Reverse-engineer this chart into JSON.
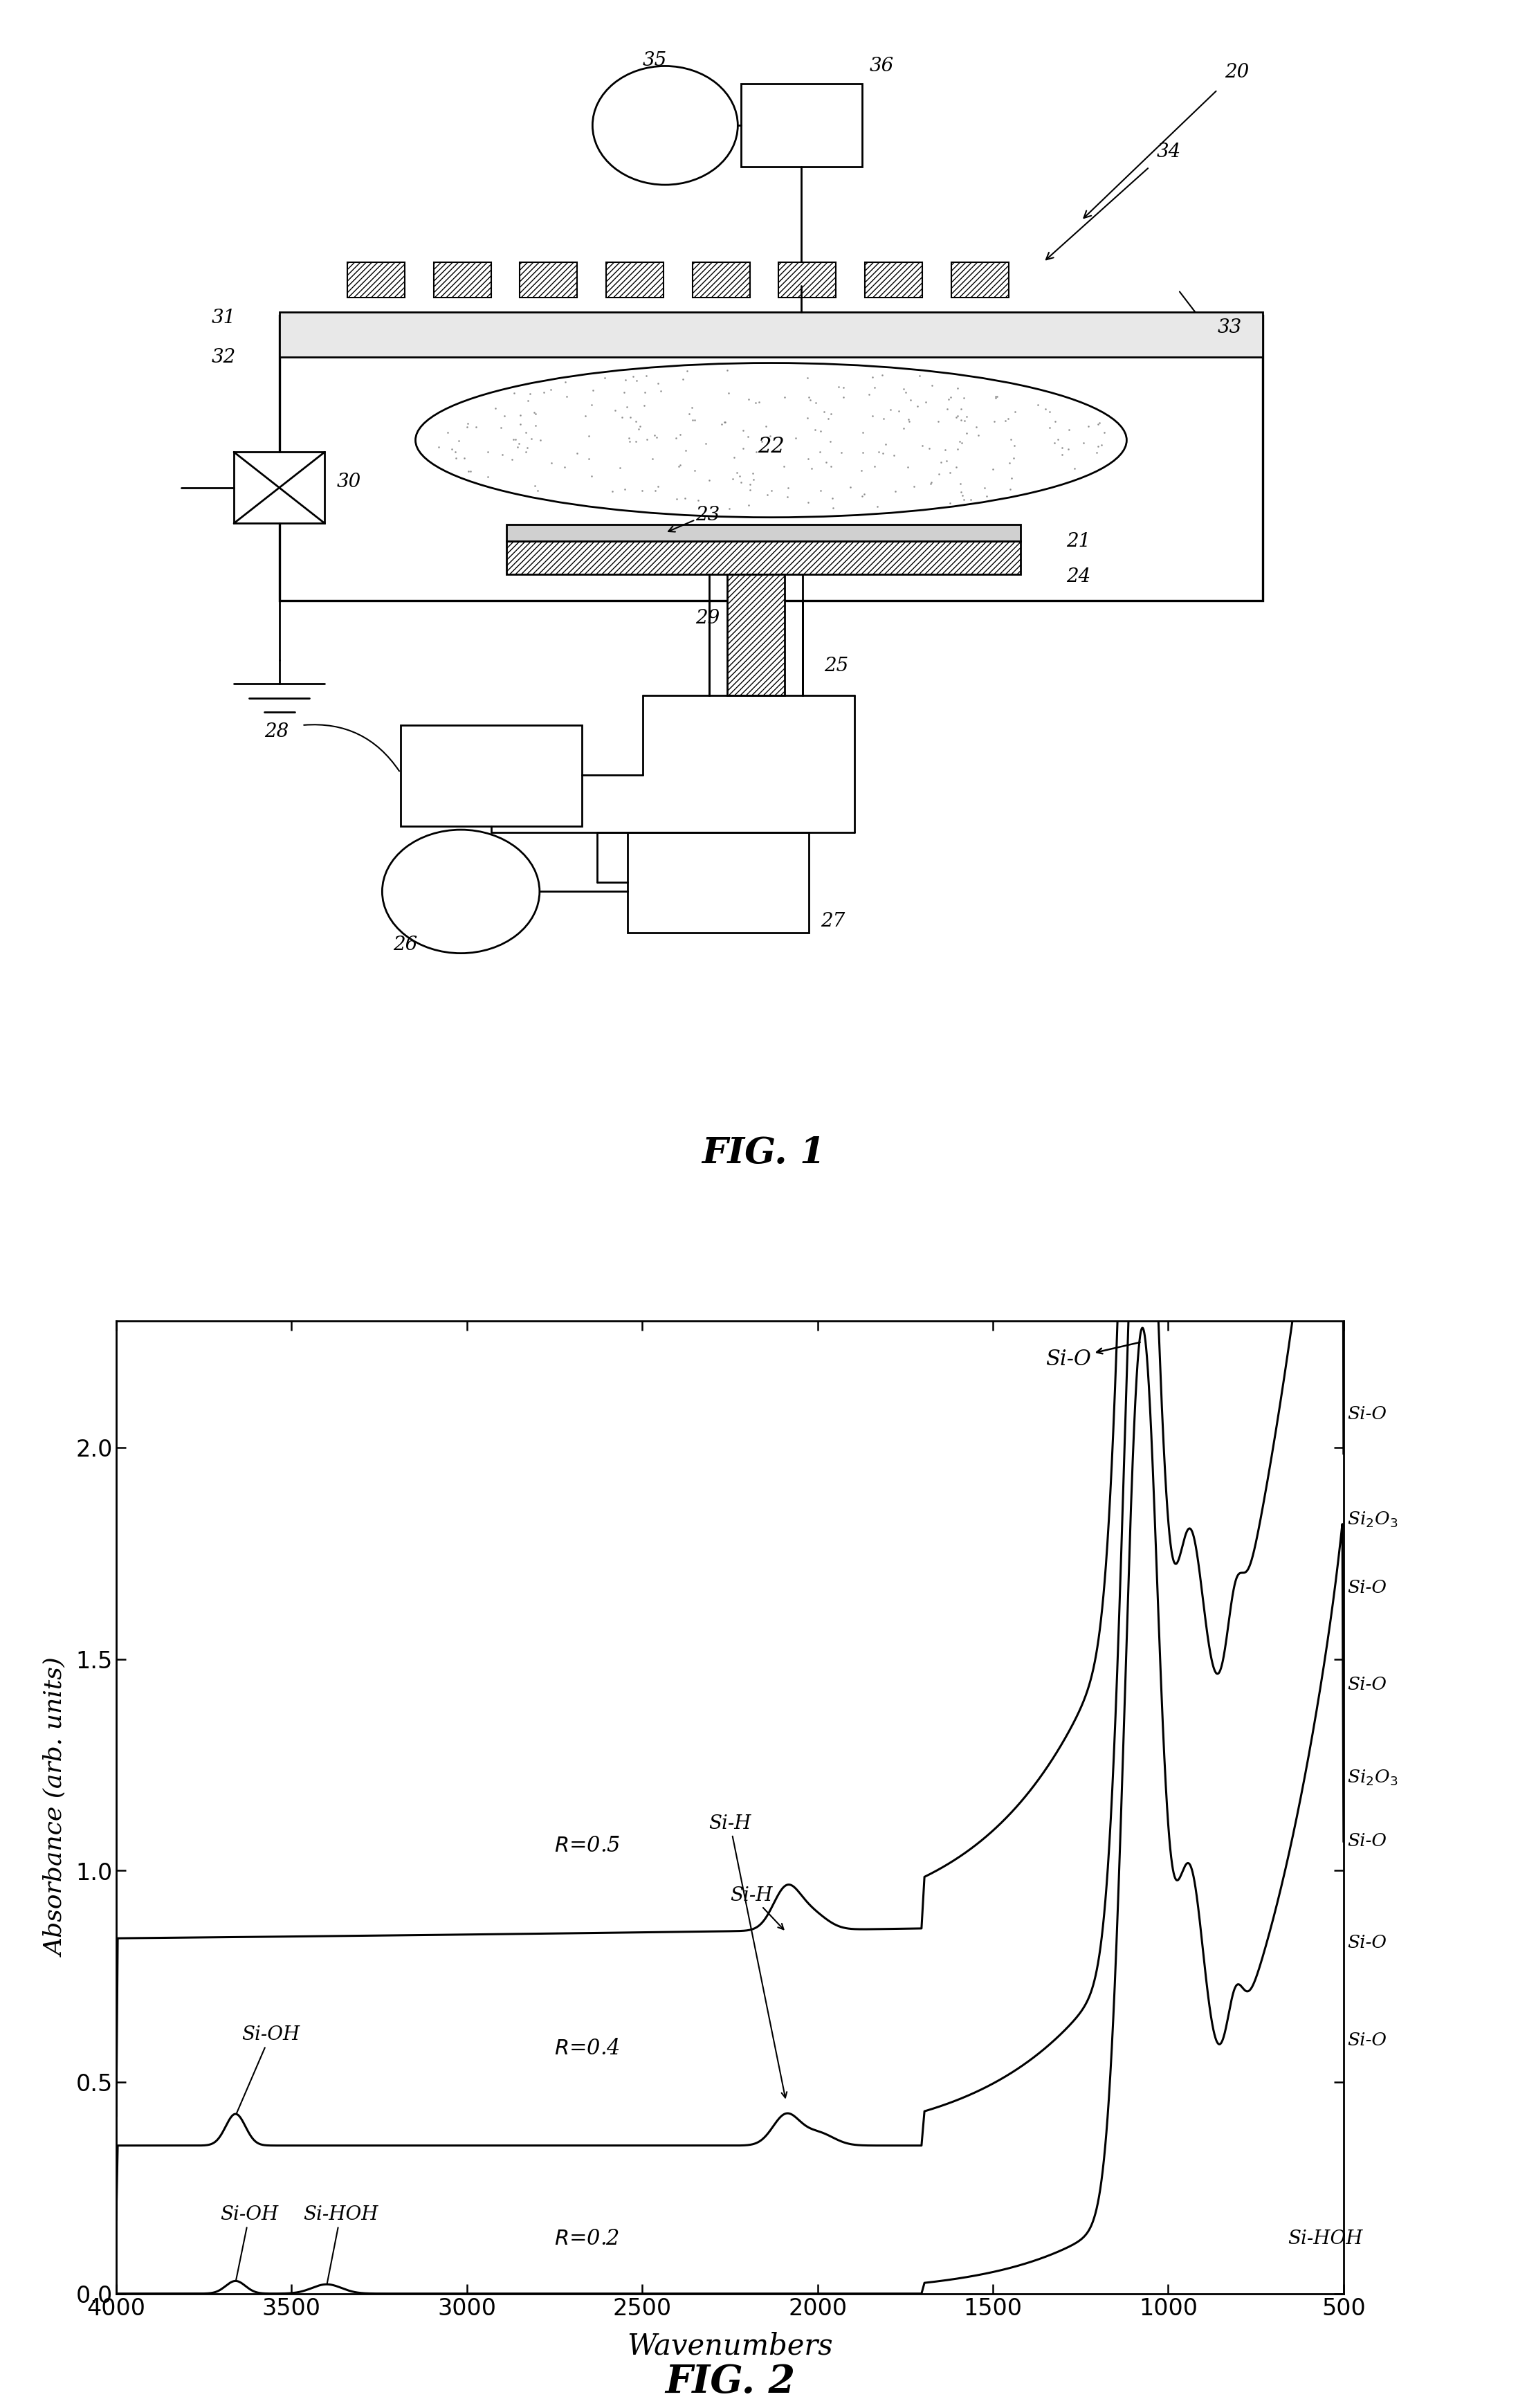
{
  "fig_width": 24.3,
  "fig_height": 36.52,
  "background_color": "#ffffff",
  "fig2_title": "FIG. 2",
  "fig1_title": "FIG. 1",
  "ylabel": "Absorbance (arb. units)",
  "xlabel": "Wavenumbers",
  "xmin": 4000,
  "xmax": 500,
  "ymin": 0.0,
  "ymax": 2.3,
  "yticks": [
    0.0,
    0.5,
    1.0,
    1.5,
    2.0
  ],
  "xticks": [
    4000,
    3500,
    3000,
    2500,
    2000,
    1500,
    1000,
    500
  ]
}
